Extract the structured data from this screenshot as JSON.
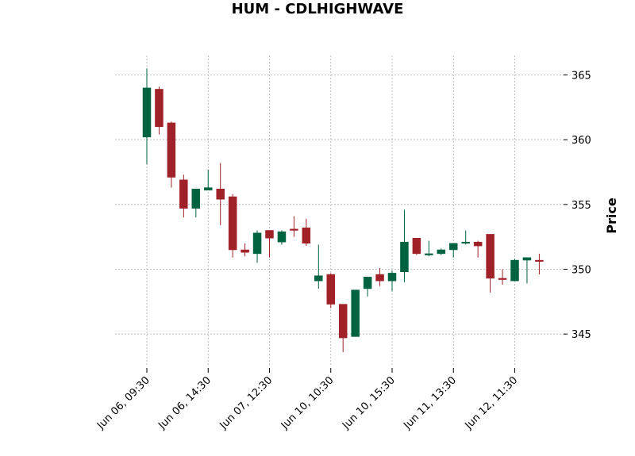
{
  "chart_data": {
    "type": "candlestick",
    "title": "HUM - CDLHIGHWAVE",
    "xlabel": "",
    "ylabel": "Price",
    "ylim": [
      342.5,
      366.5
    ],
    "yticks": [
      345,
      350,
      355,
      360,
      365
    ],
    "xticks": [
      {
        "index": 0,
        "label": "Jun 06, 09:30"
      },
      {
        "index": 5,
        "label": "Jun 06, 14:30"
      },
      {
        "index": 10,
        "label": "Jun 07, 12:30"
      },
      {
        "index": 15,
        "label": "Jun 10, 10:30"
      },
      {
        "index": 20,
        "label": "Jun 10, 15:30"
      },
      {
        "index": 25,
        "label": "Jun 11, 13:30"
      },
      {
        "index": 30,
        "label": "Jun 12, 11:30"
      }
    ],
    "grid": true,
    "colors": {
      "up": "#006340",
      "down": "#a02128",
      "grid": "#b0b0b0"
    },
    "candles": [
      {
        "o": 360.2,
        "h": 365.5,
        "l": 358.1,
        "c": 364.0
      },
      {
        "o": 363.9,
        "h": 364.1,
        "l": 360.4,
        "c": 361.0
      },
      {
        "o": 361.3,
        "h": 361.4,
        "l": 356.3,
        "c": 357.1
      },
      {
        "o": 356.9,
        "h": 357.3,
        "l": 354.0,
        "c": 354.7
      },
      {
        "o": 354.7,
        "h": 356.2,
        "l": 354.0,
        "c": 356.2
      },
      {
        "o": 356.1,
        "h": 357.7,
        "l": 356.1,
        "c": 356.3
      },
      {
        "o": 356.2,
        "h": 358.2,
        "l": 353.4,
        "c": 355.4
      },
      {
        "o": 355.6,
        "h": 355.8,
        "l": 350.9,
        "c": 351.5
      },
      {
        "o": 351.5,
        "h": 352.0,
        "l": 351.0,
        "c": 351.3
      },
      {
        "o": 351.2,
        "h": 353.0,
        "l": 350.5,
        "c": 352.8
      },
      {
        "o": 353.0,
        "h": 353.0,
        "l": 350.9,
        "c": 352.4
      },
      {
        "o": 352.1,
        "h": 353.0,
        "l": 351.9,
        "c": 352.9
      },
      {
        "o": 353.1,
        "h": 354.1,
        "l": 352.5,
        "c": 353.0
      },
      {
        "o": 353.2,
        "h": 353.9,
        "l": 351.8,
        "c": 352.0
      },
      {
        "o": 349.1,
        "h": 351.9,
        "l": 348.5,
        "c": 349.5
      },
      {
        "o": 349.6,
        "h": 349.7,
        "l": 347.0,
        "c": 347.3
      },
      {
        "o": 347.3,
        "h": 347.3,
        "l": 343.6,
        "c": 344.7
      },
      {
        "o": 344.8,
        "h": 348.4,
        "l": 344.8,
        "c": 348.4
      },
      {
        "o": 348.5,
        "h": 349.4,
        "l": 347.9,
        "c": 349.4
      },
      {
        "o": 349.6,
        "h": 350.1,
        "l": 348.7,
        "c": 349.1
      },
      {
        "o": 349.1,
        "h": 349.9,
        "l": 348.3,
        "c": 349.7
      },
      {
        "o": 349.8,
        "h": 354.6,
        "l": 349.0,
        "c": 352.1
      },
      {
        "o": 352.4,
        "h": 352.4,
        "l": 351.1,
        "c": 351.2
      },
      {
        "o": 351.1,
        "h": 352.2,
        "l": 351.0,
        "c": 351.2
      },
      {
        "o": 351.2,
        "h": 351.6,
        "l": 351.1,
        "c": 351.5
      },
      {
        "o": 351.5,
        "h": 352.0,
        "l": 350.9,
        "c": 352.0
      },
      {
        "o": 352.0,
        "h": 353.0,
        "l": 351.9,
        "c": 352.1
      },
      {
        "o": 352.1,
        "h": 352.2,
        "l": 350.9,
        "c": 351.8
      },
      {
        "o": 352.7,
        "h": 352.7,
        "l": 348.2,
        "c": 349.3
      },
      {
        "o": 349.3,
        "h": 350.0,
        "l": 348.8,
        "c": 349.2
      },
      {
        "o": 349.1,
        "h": 350.8,
        "l": 349.1,
        "c": 350.7
      },
      {
        "o": 350.7,
        "h": 350.9,
        "l": 348.9,
        "c": 350.9
      },
      {
        "o": 350.7,
        "h": 351.2,
        "l": 349.6,
        "c": 350.6
      }
    ]
  }
}
